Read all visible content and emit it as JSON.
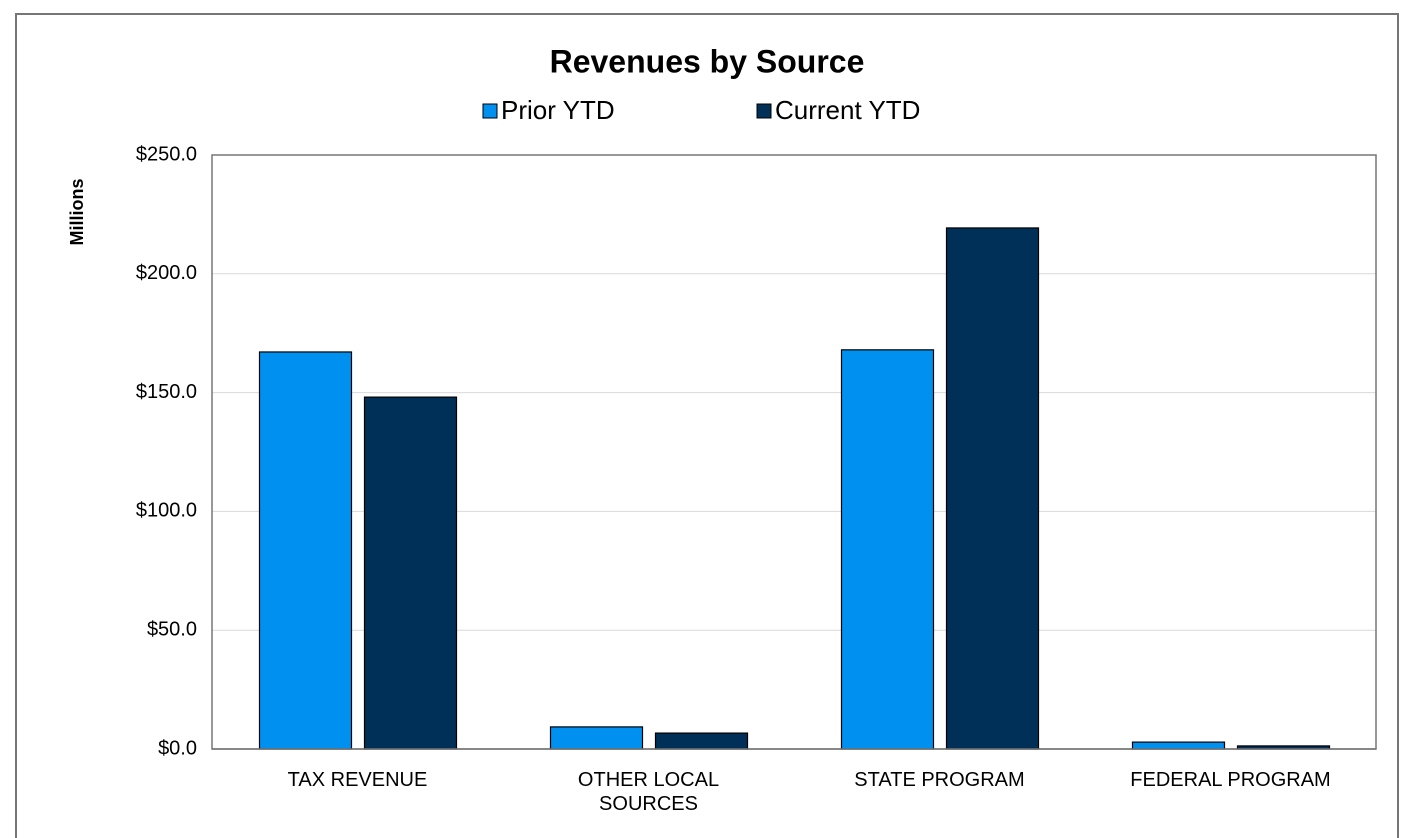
{
  "chart_data": {
    "type": "bar",
    "title": "Revenues by Source",
    "y_label": "Millions",
    "categories": [
      "TAX REVENUE",
      "OTHER LOCAL SOURCES",
      "STATE PROGRAM",
      "FEDERAL PROGRAM"
    ],
    "series": [
      {
        "name": "Prior YTD",
        "color": "#0091f0",
        "values": [
          167.1,
          9.3,
          168.0,
          2.9
        ]
      },
      {
        "name": "Current YTD",
        "color": "#003057",
        "values": [
          148.1,
          6.7,
          219.3,
          1.3
        ]
      }
    ],
    "ylim": [
      0,
      250
    ],
    "yticks": [
      {
        "value": 0,
        "label": "$0.0"
      },
      {
        "value": 50,
        "label": "$50.0"
      },
      {
        "value": 100,
        "label": "$100.0"
      },
      {
        "value": 150,
        "label": "$150.0"
      },
      {
        "value": 200,
        "label": "$200.0"
      },
      {
        "value": 250,
        "label": "$250.0"
      }
    ],
    "grid": true,
    "legend": "top"
  }
}
